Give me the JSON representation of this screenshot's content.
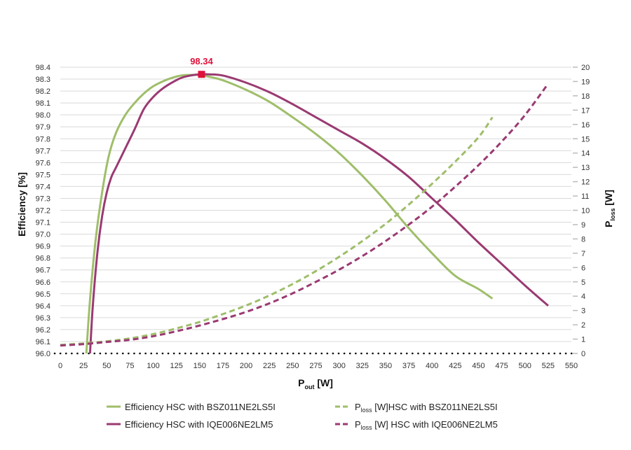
{
  "chart_data": {
    "type": "line",
    "title": "",
    "xlabel": {
      "main": "P",
      "sub": "out",
      "unit": " [W]"
    },
    "ylabel": "Efficiency [%]",
    "y2label": {
      "main": "P",
      "sub": "loss",
      "unit": " [W]"
    },
    "xlim": [
      0,
      550
    ],
    "ylim": [
      96.0,
      98.4
    ],
    "y2lim": [
      0,
      20
    ],
    "x_ticks": [
      "0",
      "25",
      "50",
      "75",
      "100",
      "125",
      "150",
      "175",
      "200",
      "225",
      "250",
      "275",
      "300",
      "325",
      "350",
      "375",
      "400",
      "425",
      "450",
      "475",
      "500",
      "525",
      "550"
    ],
    "y_ticks": [
      "96.0",
      "96.1",
      "96.2",
      "96.3",
      "96.4",
      "96.5",
      "96.6",
      "96.7",
      "96.8",
      "96.9",
      "97.0",
      "97.1",
      "97.2",
      "97.3",
      "97.4",
      "97.5",
      "97.6",
      "97.7",
      "97.8",
      "97.9",
      "98.0",
      "98.1",
      "98.2",
      "98.3",
      "98.4"
    ],
    "y2_ticks": [
      "0",
      "1",
      "2",
      "3",
      "4",
      "5",
      "6",
      "7",
      "8",
      "9",
      "10",
      "11",
      "12",
      "13",
      "14",
      "15",
      "16",
      "17",
      "18",
      "19",
      "20"
    ],
    "grid": true,
    "legend_position": "bottom",
    "colors": {
      "green": "#9fbe6a",
      "purple": "#9a3a72",
      "marker": "#e0103a"
    },
    "annotation": {
      "label": "98.34",
      "x": 152,
      "y": 98.34
    },
    "series": [
      {
        "name": "Efficiency HSC with BSZ011NE2LS5I",
        "axis": "left",
        "style": "solid",
        "color": "#9fbe6a",
        "x": [
          28,
          32,
          38,
          45,
          52,
          60,
          70,
          80,
          90,
          100,
          110,
          120,
          130,
          140,
          150,
          160,
          175,
          200,
          225,
          250,
          275,
          300,
          325,
          350,
          375,
          400,
          425,
          450,
          465
        ],
        "y": [
          96.0,
          96.45,
          96.95,
          97.35,
          97.65,
          97.85,
          98.0,
          98.1,
          98.18,
          98.24,
          98.28,
          98.31,
          98.33,
          98.335,
          98.335,
          98.32,
          98.29,
          98.21,
          98.11,
          97.98,
          97.84,
          97.68,
          97.49,
          97.28,
          97.05,
          96.84,
          96.65,
          96.54,
          96.46
        ]
      },
      {
        "name": "Efficiency HSC with IQE006NE2LM5",
        "axis": "left",
        "style": "solid",
        "color": "#9a3a72",
        "x": [
          32,
          35,
          40,
          45,
          50,
          55,
          60,
          70,
          80,
          90,
          100,
          110,
          120,
          130,
          140,
          150,
          160,
          175,
          200,
          225,
          250,
          275,
          300,
          325,
          350,
          375,
          400,
          425,
          450,
          475,
          500,
          525
        ],
        "y": [
          96.0,
          96.4,
          96.85,
          97.15,
          97.35,
          97.48,
          97.56,
          97.72,
          97.88,
          98.05,
          98.15,
          98.22,
          98.27,
          98.31,
          98.33,
          98.34,
          98.34,
          98.33,
          98.27,
          98.19,
          98.09,
          97.98,
          97.87,
          97.76,
          97.63,
          97.48,
          97.3,
          97.12,
          96.93,
          96.75,
          96.57,
          96.4
        ]
      },
      {
        "name": "P_loss [W]HSC with BSZ011NE2LS5I",
        "label_main": "P",
        "label_sub": "loss",
        "label_rest": " [W]HSC with BSZ011NE2LS5I",
        "axis": "right",
        "style": "dashed",
        "color": "#9fbe6a",
        "x": [
          0,
          25,
          50,
          75,
          100,
          125,
          150,
          175,
          200,
          225,
          250,
          275,
          300,
          325,
          350,
          375,
          400,
          425,
          450,
          465
        ],
        "y": [
          0.6,
          0.7,
          0.85,
          1.05,
          1.35,
          1.75,
          2.2,
          2.75,
          3.35,
          4.05,
          4.85,
          5.75,
          6.75,
          7.85,
          9.05,
          10.4,
          11.85,
          13.4,
          15.1,
          16.5
        ]
      },
      {
        "name": "P_loss [W] HSC with IQE006NE2LM5",
        "label_main": "P",
        "label_sub": "loss",
        "label_rest": " [W] HSC with IQE006NE2LM5",
        "axis": "right",
        "style": "dashed",
        "color": "#9a3a72",
        "x": [
          0,
          25,
          50,
          75,
          100,
          125,
          150,
          175,
          200,
          225,
          250,
          275,
          300,
          325,
          350,
          375,
          400,
          425,
          450,
          475,
          500,
          525
        ],
        "y": [
          0.55,
          0.65,
          0.8,
          0.95,
          1.2,
          1.55,
          1.95,
          2.4,
          2.9,
          3.5,
          4.2,
          5.0,
          5.85,
          6.8,
          7.85,
          9.0,
          10.25,
          11.65,
          13.15,
          14.8,
          16.65,
          18.85
        ]
      }
    ]
  }
}
